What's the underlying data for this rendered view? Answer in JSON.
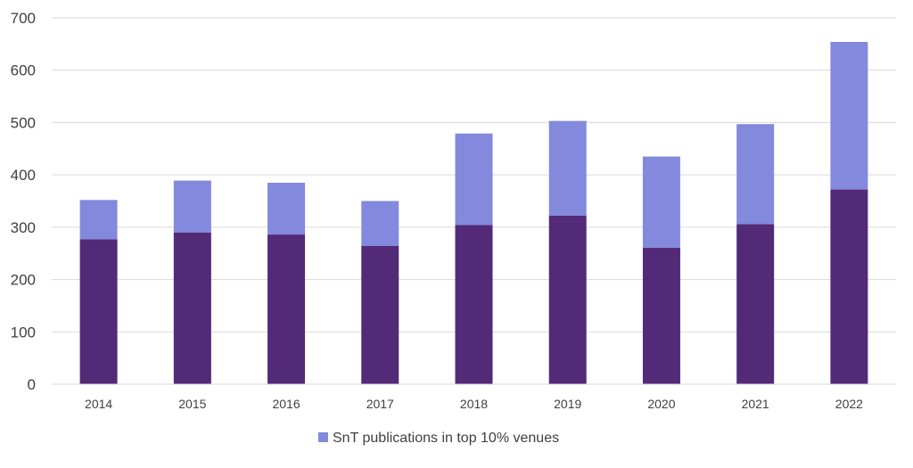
{
  "chart_data": {
    "type": "bar",
    "stacked": true,
    "title": "",
    "xlabel": "",
    "ylabel": "",
    "ylim": [
      0,
      700
    ],
    "yticks": [
      "0",
      "100",
      "200",
      "300",
      "400",
      "500",
      "600",
      "700"
    ],
    "grid": true,
    "legend_position": "bottom",
    "categories": [
      "2014",
      "2015",
      "2016",
      "2017",
      "2018",
      "2019",
      "2020",
      "2021",
      "2022"
    ],
    "series": [
      {
        "name": "",
        "color": "#532a77",
        "values": [
          277,
          290,
          286,
          264,
          304,
          322,
          261,
          306,
          372
        ]
      },
      {
        "name": "SnT publications in top 10% venues",
        "color": "#8389dc",
        "values": [
          75,
          99,
          99,
          86,
          175,
          181,
          174,
          191,
          282
        ]
      }
    ],
    "legend": {
      "label": "SnT publications in top 10% venues",
      "color": "#8389dc"
    }
  }
}
